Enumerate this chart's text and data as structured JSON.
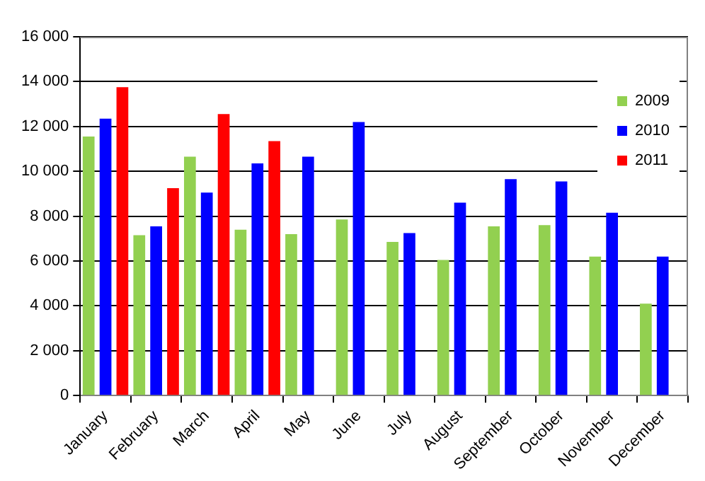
{
  "chart_data": {
    "type": "bar",
    "categories": [
      "January",
      "February",
      "March",
      "April",
      "May",
      "June",
      "July",
      "August",
      "September",
      "October",
      "November",
      "December"
    ],
    "series": [
      {
        "name": "2009",
        "color": "#92d050",
        "values": [
          11550,
          7150,
          10650,
          7400,
          7200,
          7850,
          6850,
          6050,
          7550,
          7600,
          6200,
          4100
        ]
      },
      {
        "name": "2010",
        "color": "#0000ff",
        "values": [
          12350,
          7550,
          9050,
          10350,
          10650,
          12200,
          7250,
          8600,
          9650,
          9550,
          8150,
          6200
        ]
      },
      {
        "name": "2011",
        "color": "#ff0000",
        "values": [
          13750,
          9250,
          12550,
          11350,
          null,
          null,
          null,
          null,
          null,
          null,
          null,
          null
        ]
      }
    ],
    "ylim": [
      0,
      16000
    ],
    "yticks": [
      {
        "value": 0,
        "label": "0"
      },
      {
        "value": 2000,
        "label": "2 000"
      },
      {
        "value": 4000,
        "label": "4 000"
      },
      {
        "value": 6000,
        "label": "6 000"
      },
      {
        "value": 8000,
        "label": "8 000"
      },
      {
        "value": 10000,
        "label": "10 000"
      },
      {
        "value": 12000,
        "label": "12 000"
      },
      {
        "value": 14000,
        "label": "14 000"
      },
      {
        "value": 16000,
        "label": "16 000"
      }
    ],
    "grid": "y",
    "legend": "top right"
  }
}
